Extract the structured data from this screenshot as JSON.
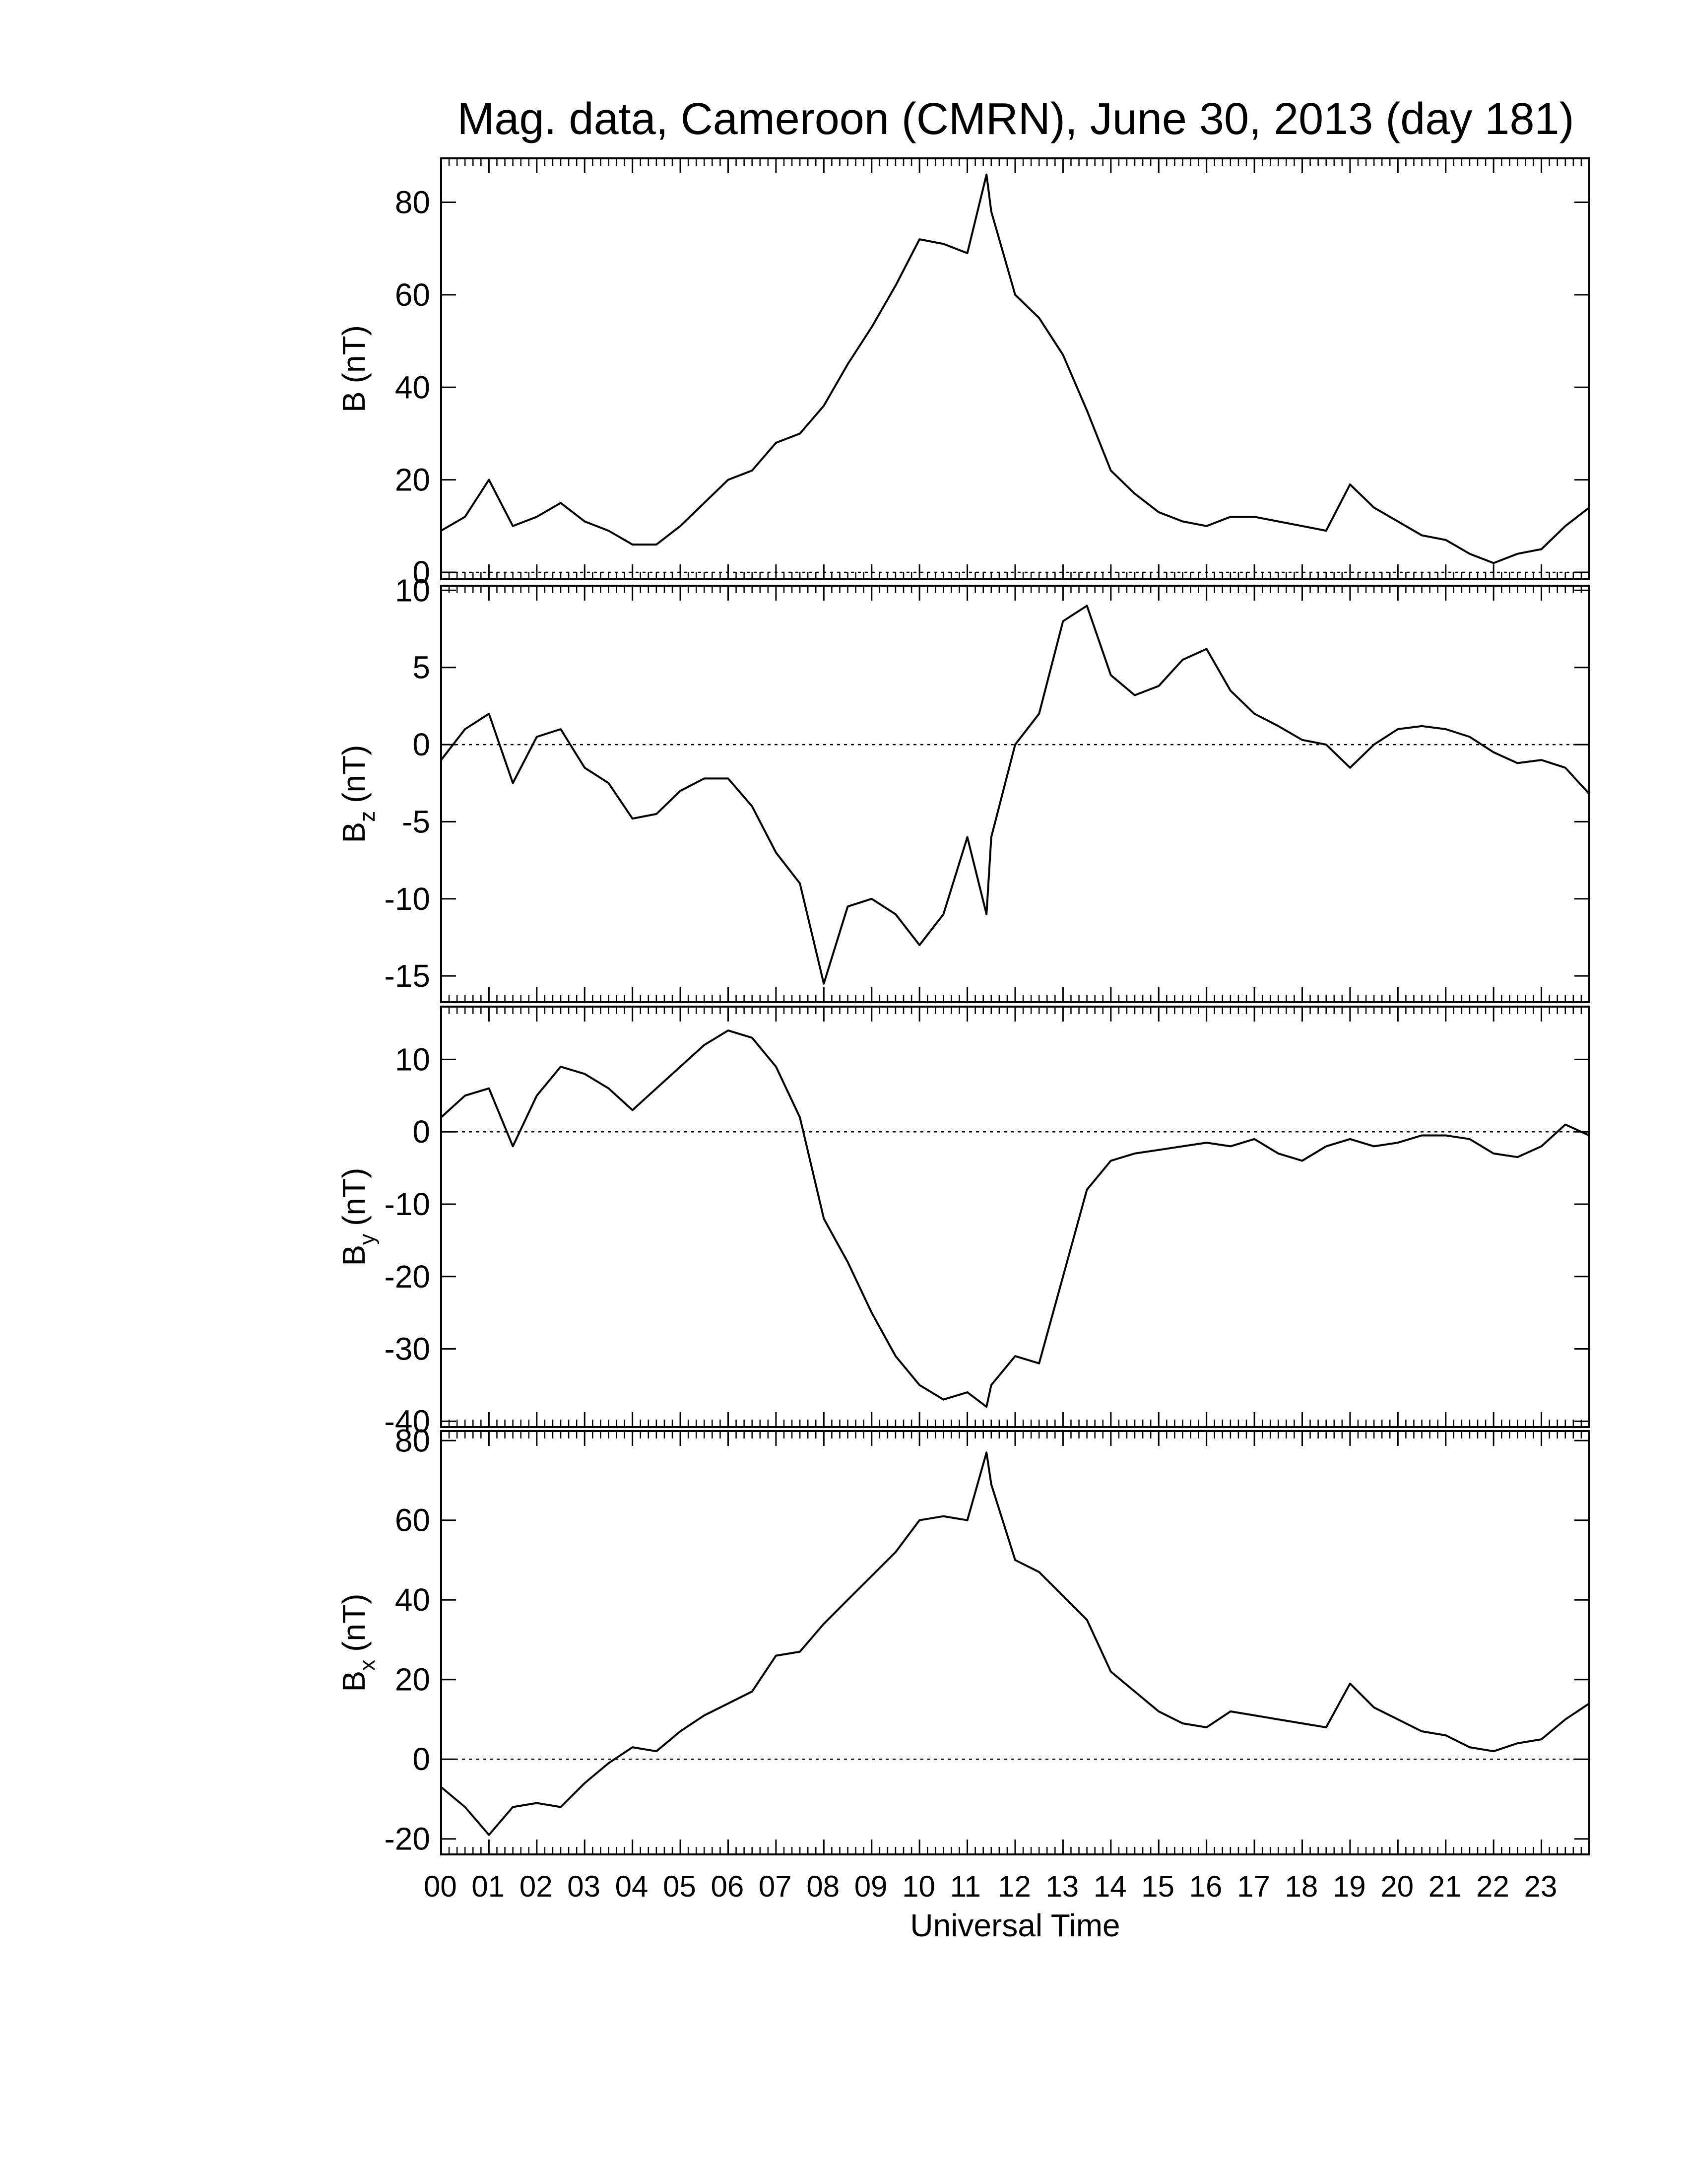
{
  "chart_data": [
    {
      "type": "line",
      "title": "Mag. data, Cameroon (CMRN), June 30, 2013 (day 181)",
      "ylabel": {
        "symbol": "B",
        "unit": "(nT)"
      },
      "color": "#000000",
      "zero_line": true,
      "xlim": [
        0,
        24
      ],
      "ylim": [
        -1.5,
        89.5
      ],
      "yticks": [
        0,
        20,
        40,
        60,
        80
      ],
      "x": [
        0,
        0.5,
        1,
        1.5,
        2,
        2.5,
        3,
        3.5,
        4,
        4.5,
        5,
        5.5,
        6,
        6.5,
        7,
        7.5,
        8,
        8.5,
        9,
        9.5,
        10,
        10.5,
        11,
        11.4,
        11.5,
        12,
        12.5,
        13,
        13.5,
        14,
        14.5,
        15,
        15.5,
        16,
        16.5,
        17,
        17.5,
        18,
        18.5,
        19,
        19.5,
        20,
        20.5,
        21,
        21.5,
        22,
        22.5,
        23,
        23.5,
        24
      ],
      "values": [
        9,
        12,
        20,
        10,
        12,
        15,
        11,
        9,
        6,
        6,
        10,
        15,
        20,
        22,
        28,
        30,
        36,
        45,
        53,
        62,
        72,
        71,
        69,
        86,
        78,
        60,
        55,
        47,
        35,
        22,
        17,
        13,
        11,
        10,
        12,
        12,
        11,
        10,
        9,
        19,
        14,
        11,
        8,
        7,
        4,
        2,
        4,
        5,
        10,
        14
      ]
    },
    {
      "type": "line",
      "ylabel": {
        "symbol": "B",
        "subscript": "z",
        "unit": "(nT)"
      },
      "color": "#000000",
      "zero_line": true,
      "xlim": [
        0,
        24
      ],
      "ylim": [
        -16.7,
        10.3
      ],
      "yticks": [
        -15,
        -10,
        -5,
        0,
        5,
        10
      ],
      "x": [
        0,
        0.5,
        1,
        1.5,
        2,
        2.5,
        3,
        3.5,
        4,
        4.5,
        5,
        5.5,
        6,
        6.5,
        7,
        7.5,
        8,
        8.5,
        9,
        9.5,
        10,
        10.5,
        11,
        11.4,
        11.5,
        12,
        12.5,
        13,
        13.5,
        14,
        14.5,
        15,
        15.5,
        16,
        16.5,
        17,
        17.5,
        18,
        18.5,
        19,
        19.5,
        20,
        20.5,
        21,
        21.5,
        22,
        22.5,
        23,
        23.5,
        24
      ],
      "values": [
        -1,
        1,
        2,
        -2.5,
        0.5,
        1,
        -1.5,
        -2.5,
        -4.8,
        -4.5,
        -3,
        -2.2,
        -2.2,
        -4,
        -7,
        -9,
        -15.5,
        -10.5,
        -10,
        -11,
        -13,
        -11,
        -6,
        -11,
        -6,
        0,
        2,
        8,
        9,
        4.5,
        3.2,
        3.8,
        5.5,
        6.2,
        3.5,
        2,
        1.2,
        0.3,
        0,
        -1.5,
        0,
        1,
        1.2,
        1,
        0.5,
        -0.5,
        -1.2,
        -1,
        -1.5,
        -3.2
      ]
    },
    {
      "type": "line",
      "ylabel": {
        "symbol": "B",
        "subscript": "y",
        "unit": "(nT)"
      },
      "color": "#000000",
      "zero_line": true,
      "xlim": [
        0,
        24
      ],
      "ylim": [
        -40.8,
        17.3
      ],
      "yticks": [
        -40,
        -30,
        -20,
        -10,
        0,
        10
      ],
      "x": [
        0,
        0.5,
        1,
        1.5,
        2,
        2.5,
        3,
        3.5,
        4,
        4.5,
        5,
        5.5,
        6,
        6.5,
        7,
        7.5,
        8,
        8.5,
        9,
        9.5,
        10,
        10.5,
        11,
        11.4,
        11.5,
        12,
        12.5,
        13,
        13.5,
        14,
        14.5,
        15,
        15.5,
        16,
        16.5,
        17,
        17.5,
        18,
        18.5,
        19,
        19.5,
        20,
        20.5,
        21,
        21.5,
        22,
        22.5,
        23,
        23.5,
        24
      ],
      "values": [
        2,
        5,
        6,
        -2,
        5,
        9,
        8,
        6,
        3,
        6,
        9,
        12,
        14,
        13,
        9,
        2,
        -12,
        -18,
        -25,
        -31,
        -35,
        -37,
        -36,
        -38,
        -35,
        -31,
        -32,
        -20,
        -8,
        -4,
        -3,
        -2.5,
        -2,
        -1.5,
        -2,
        -1,
        -3,
        -4,
        -2,
        -1,
        -2,
        -1.5,
        -0.5,
        -0.5,
        -1,
        -3,
        -3.5,
        -2,
        1,
        -0.5
      ]
    },
    {
      "type": "line",
      "ylabel": {
        "symbol": "B",
        "subscript": "x",
        "unit": "(nT)"
      },
      "color": "#000000",
      "zero_line": true,
      "xlabel": "Universal Time",
      "xlim": [
        0,
        24
      ],
      "ylim": [
        -23.9,
        82.4
      ],
      "yticks": [
        -20,
        0,
        20,
        40,
        60,
        80
      ],
      "xticks": [
        {
          "value": 0,
          "label": "00"
        },
        {
          "value": 1,
          "label": "01"
        },
        {
          "value": 2,
          "label": "02"
        },
        {
          "value": 3,
          "label": "03"
        },
        {
          "value": 4,
          "label": "04"
        },
        {
          "value": 5,
          "label": "05"
        },
        {
          "value": 6,
          "label": "06"
        },
        {
          "value": 7,
          "label": "07"
        },
        {
          "value": 8,
          "label": "08"
        },
        {
          "value": 9,
          "label": "09"
        },
        {
          "value": 10,
          "label": "10"
        },
        {
          "value": 11,
          "label": "11"
        },
        {
          "value": 12,
          "label": "12"
        },
        {
          "value": 13,
          "label": "13"
        },
        {
          "value": 14,
          "label": "14"
        },
        {
          "value": 15,
          "label": "15"
        },
        {
          "value": 16,
          "label": "16"
        },
        {
          "value": 17,
          "label": "17"
        },
        {
          "value": 18,
          "label": "18"
        },
        {
          "value": 19,
          "label": "19"
        },
        {
          "value": 20,
          "label": "20"
        },
        {
          "value": 21,
          "label": "21"
        },
        {
          "value": 22,
          "label": "22"
        },
        {
          "value": 23,
          "label": "23"
        }
      ],
      "x": [
        0,
        0.5,
        1,
        1.5,
        2,
        2.5,
        3,
        3.5,
        4,
        4.5,
        5,
        5.5,
        6,
        6.5,
        7,
        7.5,
        8,
        8.5,
        9,
        9.5,
        10,
        10.5,
        11,
        11.4,
        11.5,
        12,
        12.5,
        13,
        13.5,
        14,
        14.5,
        15,
        15.5,
        16,
        16.5,
        17,
        17.5,
        18,
        18.5,
        19,
        19.5,
        20,
        20.5,
        21,
        21.5,
        22,
        22.5,
        23,
        23.5,
        24
      ],
      "values": [
        -7,
        -12,
        -19,
        -12,
        -11,
        -12,
        -6,
        -1,
        3,
        2,
        7,
        11,
        14,
        17,
        26,
        27,
        34,
        40,
        46,
        52,
        60,
        61,
        60,
        77,
        69,
        50,
        47,
        41,
        35,
        22,
        17,
        12,
        9,
        8,
        12,
        11,
        10,
        9,
        8,
        19,
        13,
        10,
        7,
        6,
        3,
        2,
        4,
        5,
        10,
        14
      ]
    }
  ]
}
